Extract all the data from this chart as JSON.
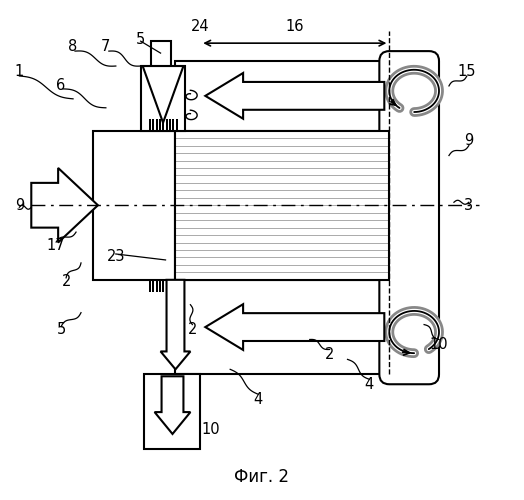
{
  "fig_label": "Фиг. 2",
  "background": "#ffffff",
  "lc": "#000000",
  "gray": "#999999",
  "light_gray": "#cccccc"
}
